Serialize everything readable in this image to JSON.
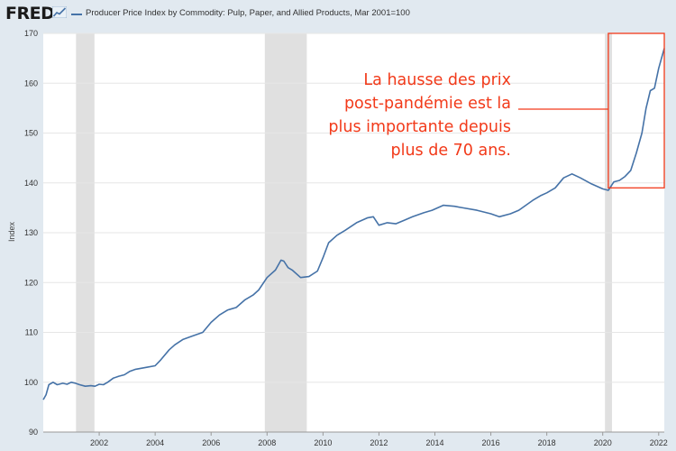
{
  "header": {
    "logo_text": "FRED",
    "logo_icon": "trend-chart-icon",
    "legend_label": "Producer Price Index by Commodity: Pulp, Paper, and Allied Products, Mar 2001=100",
    "series_color": "#4572a7"
  },
  "annotation": {
    "lines": [
      "La hausse des prix",
      "post-pandémie est la",
      "plus importante depuis",
      "plus de 70 ans."
    ],
    "color": "#f23a1a",
    "highlight_range": {
      "x_start": 2020.2,
      "x_end": 2022.2,
      "y_min": 139,
      "y_max": 170
    }
  },
  "chart_data": {
    "type": "line",
    "title": "",
    "xlabel": "",
    "ylabel": "Index",
    "xlim": [
      2000.0,
      2022.2
    ],
    "ylim": [
      90,
      170
    ],
    "grid": true,
    "x_ticks": [
      2002,
      2004,
      2006,
      2008,
      2010,
      2012,
      2014,
      2016,
      2018,
      2020,
      2022
    ],
    "y_ticks": [
      90,
      100,
      110,
      120,
      130,
      140,
      150,
      160,
      170
    ],
    "recessions": [
      [
        2001.17,
        2001.83
      ],
      [
        2007.92,
        2009.42
      ],
      [
        2020.08,
        2020.33
      ]
    ],
    "series": [
      {
        "name": "Producer Price Index by Commodity: Pulp, Paper, and Allied Products, Mar 2001=100",
        "color": "#4572a7",
        "x": [
          2000.0,
          2000.1,
          2000.2,
          2000.35,
          2000.5,
          2000.7,
          2000.85,
          2001.0,
          2001.15,
          2001.3,
          2001.5,
          2001.7,
          2001.85,
          2002.0,
          2002.15,
          2002.3,
          2002.5,
          2002.7,
          2002.9,
          2003.1,
          2003.3,
          2003.5,
          2003.7,
          2004.0,
          2004.2,
          2004.5,
          2004.7,
          2005.0,
          2005.3,
          2005.7,
          2006.0,
          2006.3,
          2006.6,
          2006.9,
          2007.2,
          2007.5,
          2007.7,
          2008.0,
          2008.3,
          2008.5,
          2008.6,
          2008.75,
          2008.9,
          2009.2,
          2009.5,
          2009.8,
          2010.0,
          2010.2,
          2010.5,
          2010.8,
          2011.2,
          2011.6,
          2011.8,
          2012.0,
          2012.3,
          2012.6,
          2012.9,
          2013.2,
          2013.6,
          2013.9,
          2014.3,
          2014.7,
          2015.0,
          2015.5,
          2016.0,
          2016.3,
          2016.7,
          2017.0,
          2017.5,
          2017.8,
          2018.0,
          2018.3,
          2018.6,
          2018.9,
          2019.2,
          2019.6,
          2020.0,
          2020.2,
          2020.4,
          2020.6,
          2020.8,
          2021.0,
          2021.2,
          2021.4,
          2021.55,
          2021.7,
          2021.85,
          2022.0,
          2022.1,
          2022.2
        ],
        "values": [
          96.5,
          97.5,
          99.5,
          100.0,
          99.5,
          99.8,
          99.6,
          100.0,
          99.8,
          99.5,
          99.2,
          99.3,
          99.2,
          99.6,
          99.5,
          100.0,
          100.8,
          101.2,
          101.5,
          102.2,
          102.6,
          102.8,
          103.0,
          103.3,
          104.5,
          106.5,
          107.5,
          108.6,
          109.2,
          110.0,
          112.0,
          113.5,
          114.5,
          115.0,
          116.5,
          117.5,
          118.5,
          121.0,
          122.5,
          124.5,
          124.3,
          123.0,
          122.5,
          121.0,
          121.2,
          122.3,
          125.0,
          128.0,
          129.5,
          130.5,
          132.0,
          133.0,
          133.2,
          131.5,
          132.0,
          131.8,
          132.5,
          133.2,
          134.0,
          134.5,
          135.5,
          135.3,
          135.0,
          134.5,
          133.8,
          133.2,
          133.8,
          134.5,
          136.5,
          137.5,
          138.0,
          139.0,
          141.0,
          141.8,
          141.0,
          139.8,
          138.8,
          138.5,
          140.2,
          140.5,
          141.3,
          142.5,
          146.0,
          150.0,
          155.0,
          158.5,
          159.0,
          163.0,
          165.0,
          167.0
        ]
      }
    ]
  }
}
